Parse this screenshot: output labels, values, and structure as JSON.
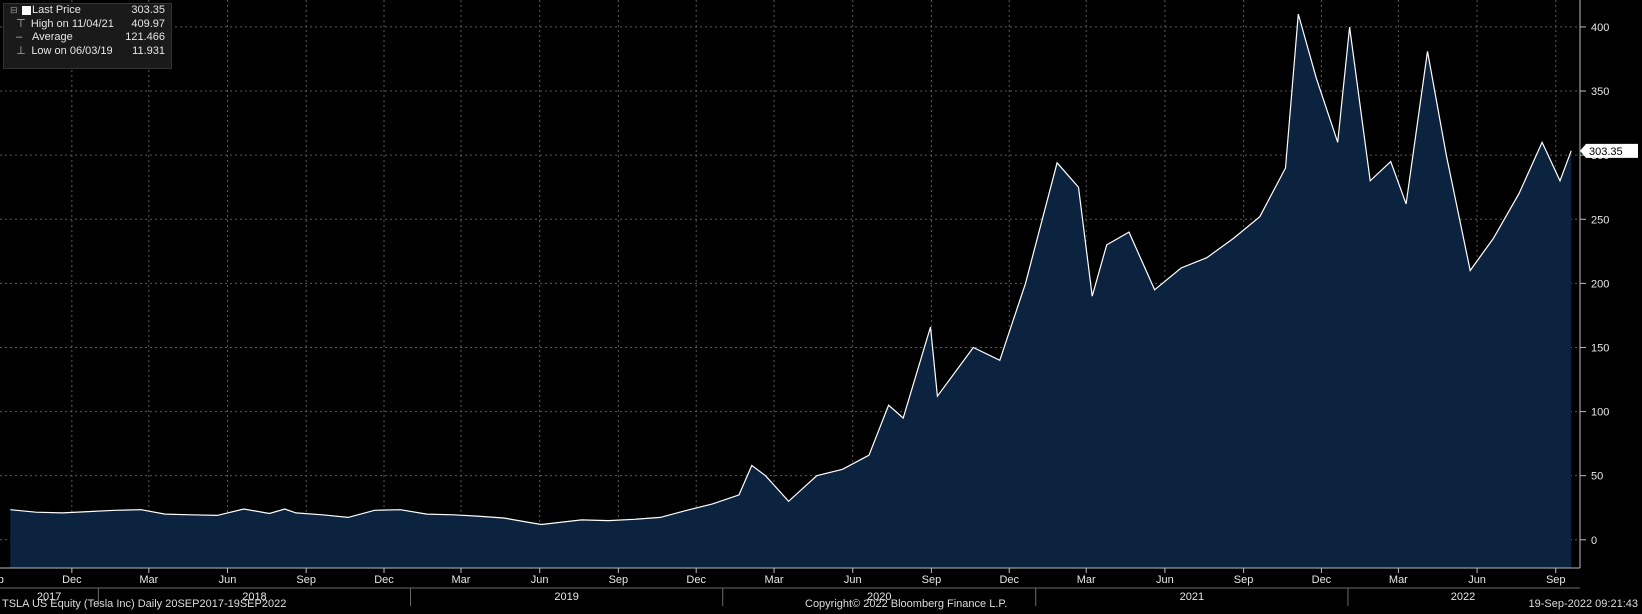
{
  "chart_data": {
    "type": "area",
    "ylim": [
      -22,
      421
    ],
    "y_ticks": [
      0,
      50,
      100,
      150,
      200,
      250,
      300,
      350,
      400
    ],
    "last_value_label": "303.35",
    "x_months": [
      "Sep",
      "Dec",
      "Mar",
      "Jun",
      "Sep",
      "Dec",
      "Mar",
      "Jun",
      "Sep",
      "Dec",
      "Mar",
      "Jun",
      "Sep",
      "Dec",
      "Mar",
      "Jun",
      "Sep",
      "Dec",
      "Mar",
      "Jun",
      "Sep"
    ],
    "x_years": [
      "2017",
      "2018",
      "2019",
      "2020",
      "2021",
      "2022"
    ],
    "series": [
      {
        "name": "Last Price",
        "x": [
          "2017-09-20",
          "2017-10-20",
          "2017-11-20",
          "2017-12-20",
          "2018-01-20",
          "2018-02-20",
          "2018-03-20",
          "2018-04-20",
          "2018-05-20",
          "2018-06-20",
          "2018-07-20",
          "2018-08-07",
          "2018-08-20",
          "2018-09-20",
          "2018-10-20",
          "2018-11-20",
          "2018-12-20",
          "2019-01-20",
          "2019-02-20",
          "2019-03-20",
          "2019-04-20",
          "2019-05-20",
          "2019-06-03",
          "2019-07-20",
          "2019-08-20",
          "2019-09-20",
          "2019-10-20",
          "2019-11-20",
          "2019-12-20",
          "2020-01-20",
          "2020-02-04",
          "2020-02-20",
          "2020-03-18",
          "2020-04-20",
          "2020-05-20",
          "2020-06-20",
          "2020-07-13",
          "2020-07-30",
          "2020-08-31",
          "2020-09-08",
          "2020-10-20",
          "2020-11-20",
          "2020-12-20",
          "2021-01-26",
          "2021-02-20",
          "2021-03-08",
          "2021-03-25",
          "2021-04-20",
          "2021-05-20",
          "2021-06-20",
          "2021-07-20",
          "2021-08-20",
          "2021-09-20",
          "2021-10-20",
          "2021-11-04",
          "2021-11-25",
          "2021-12-20",
          "2022-01-03",
          "2022-01-27",
          "2022-02-20",
          "2022-03-10",
          "2022-04-04",
          "2022-04-26",
          "2022-05-24",
          "2022-06-20",
          "2022-07-20",
          "2022-08-16",
          "2022-09-06",
          "2022-09-19"
        ],
        "y": [
          23.5,
          21.5,
          21.0,
          22.0,
          23.0,
          23.5,
          20.0,
          19.5,
          19.0,
          24.0,
          20.5,
          24.0,
          21.0,
          19.5,
          17.5,
          23.0,
          23.5,
          20.0,
          19.5,
          18.5,
          17.0,
          13.5,
          11.9,
          15.5,
          15.0,
          16.0,
          17.5,
          23.0,
          28.0,
          35.0,
          58.0,
          50.0,
          30.0,
          50.0,
          55.0,
          66.0,
          105.0,
          95.0,
          166.0,
          112.0,
          150.0,
          140.0,
          200.0,
          294.0,
          275.0,
          190.0,
          230.0,
          240.0,
          195.0,
          212.0,
          220.0,
          235.0,
          252.0,
          290.0,
          409.97,
          360.0,
          310.0,
          399.9,
          280.0,
          295.0,
          262.0,
          381.0,
          300.0,
          210.0,
          235.0,
          270.0,
          310.0,
          280.0,
          303.35
        ]
      }
    ]
  },
  "legend": {
    "last_price_label": "Last Price",
    "last_price_value": "303.35",
    "high_label": "High on 11/04/21",
    "high_value": "409.97",
    "average_label": "Average",
    "average_value": "121.466",
    "low_label": "Low on 06/03/19",
    "low_value": "11.931"
  },
  "footer": {
    "security": "TSLA US Equity (Tesla Inc)  Daily 20SEP2017-19SEP2022",
    "copyright": "Copyright© 2022 Bloomberg Finance L.P.",
    "timestamp": "19-Sep-2022 09:21:43"
  },
  "colors": {
    "background": "#000000",
    "area_fill": "#0c2340",
    "line": "#ffffff",
    "grid": "#5a5a5a",
    "axis_text": "#e6e6e6"
  }
}
